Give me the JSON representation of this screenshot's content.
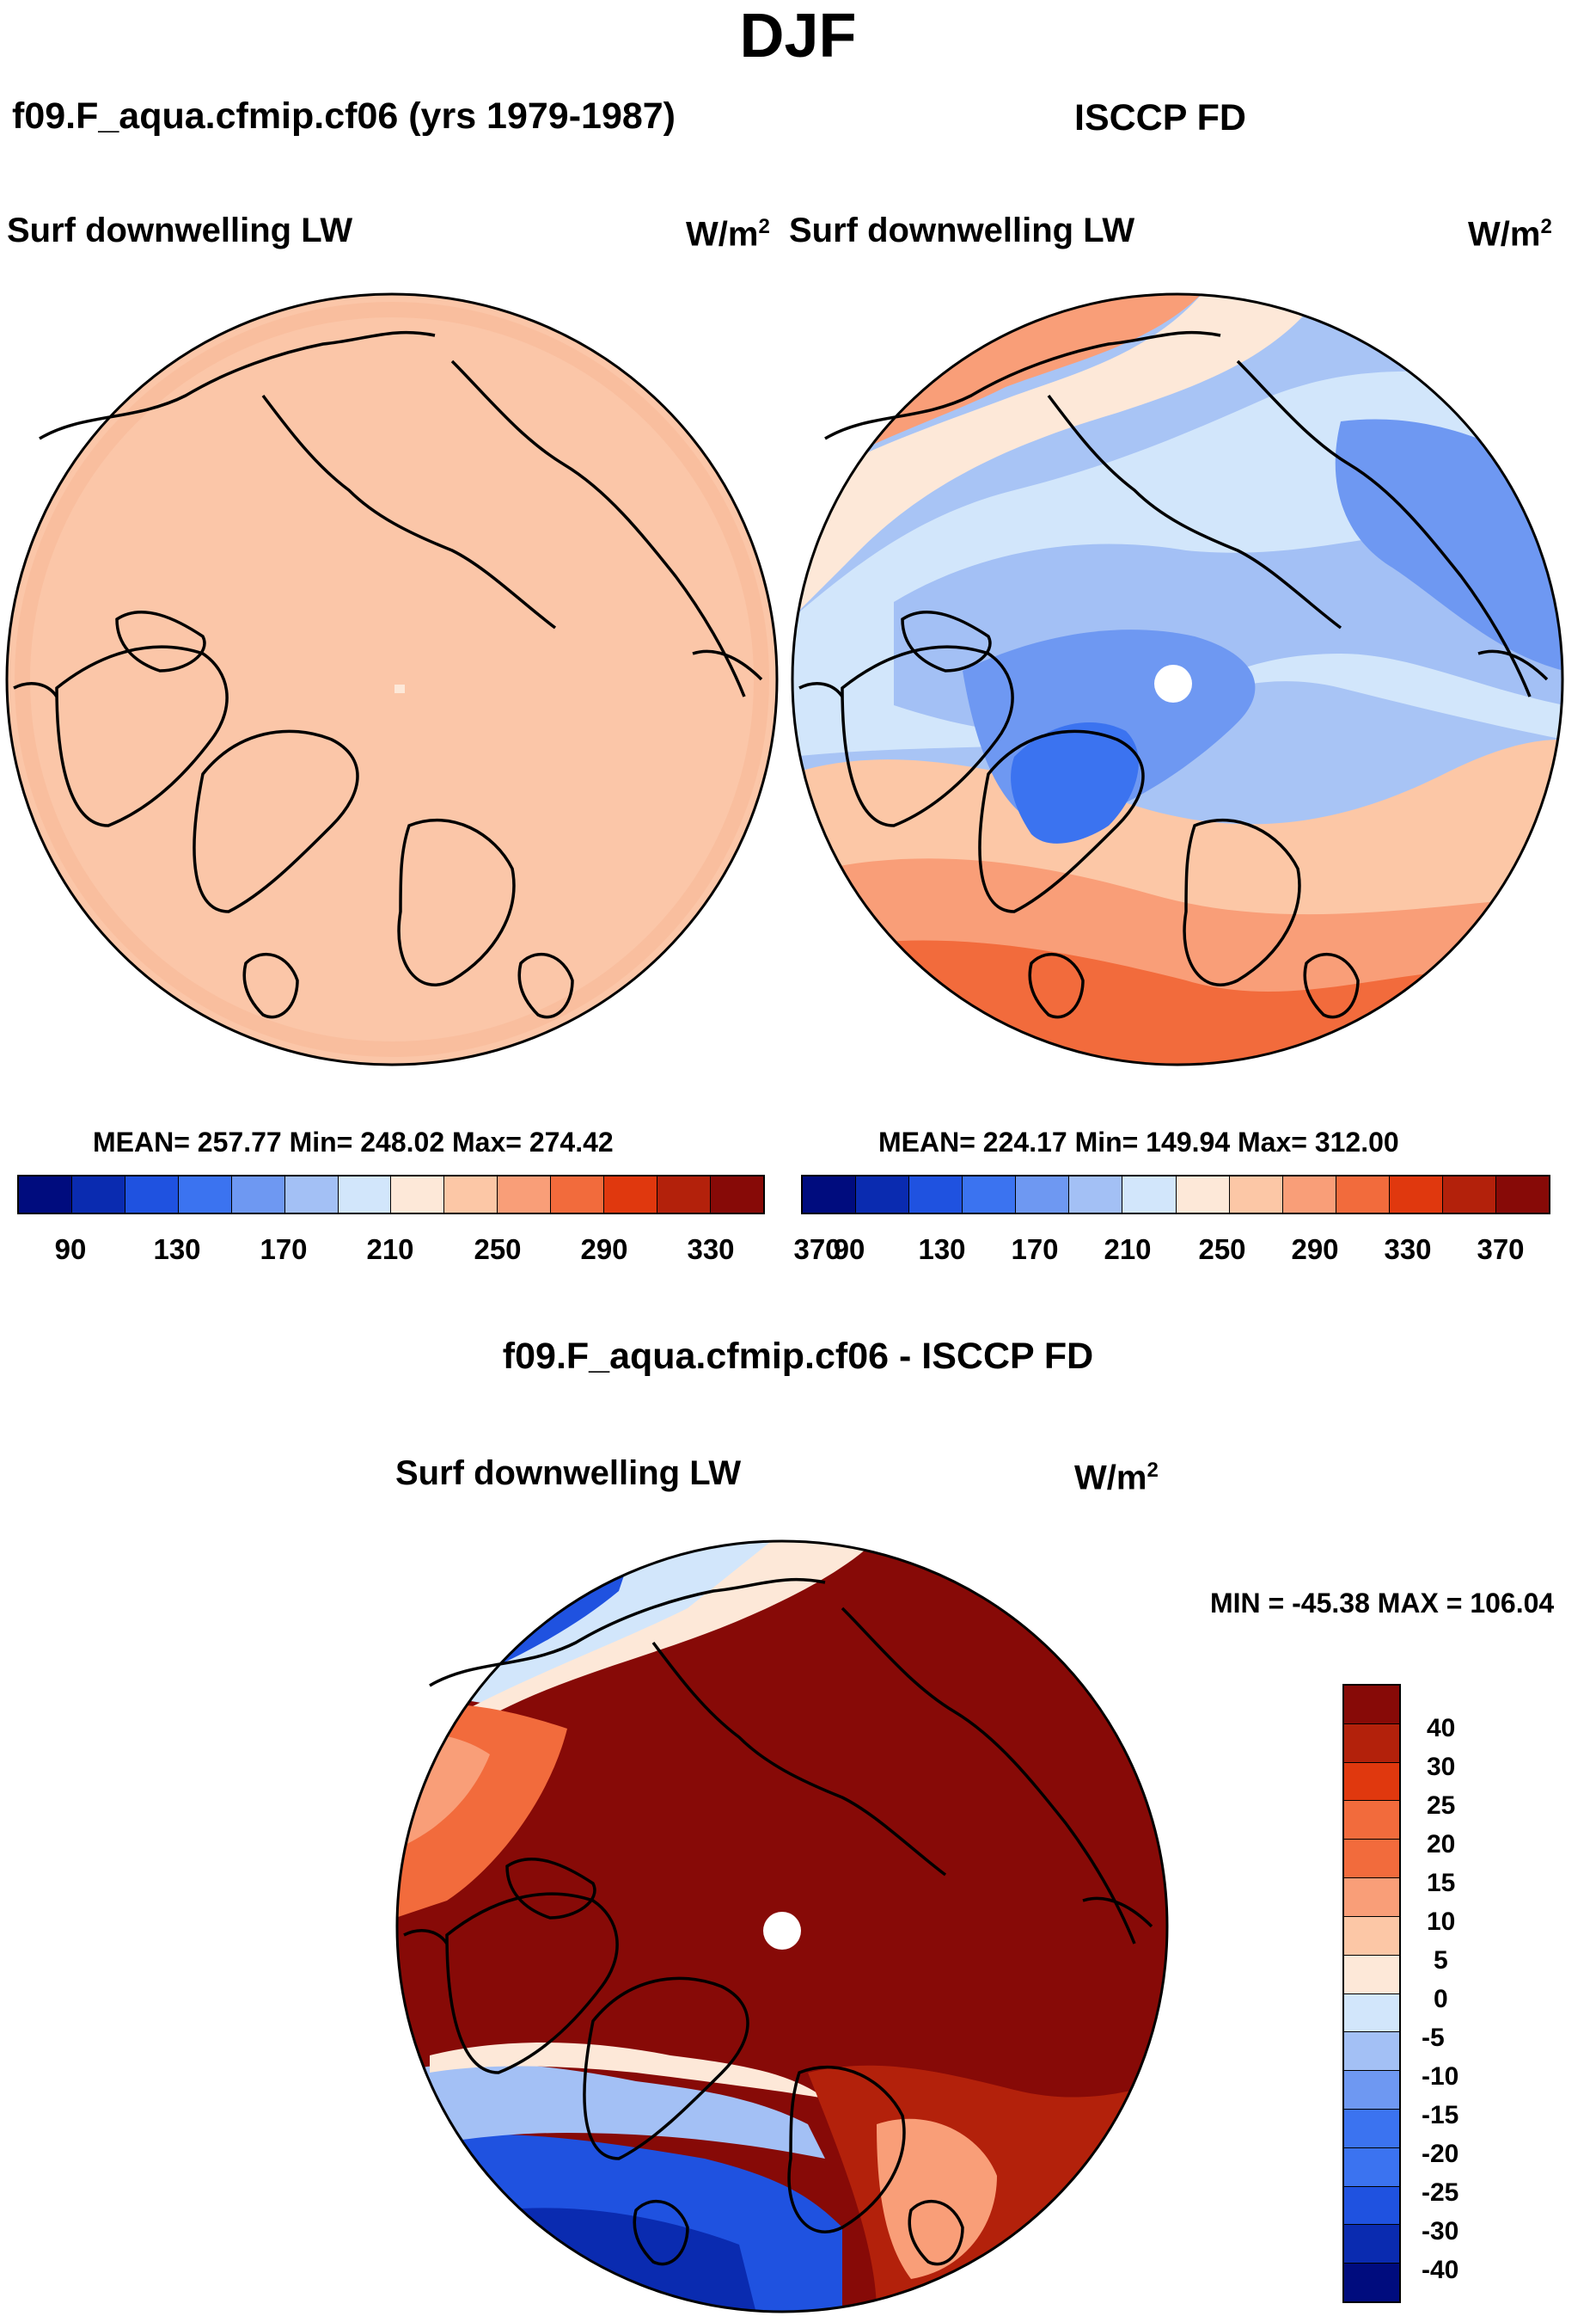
{
  "page_title": "DJF",
  "colors": {
    "abs_levels": [
      "#000c7e",
      "#0a2bb0",
      "#1f52e0",
      "#3b73f0",
      "#6e98f2",
      "#a3c0f5",
      "#d2e6fb",
      "#fde8d8",
      "#fcc7a6",
      "#f99e78",
      "#f26b3c",
      "#e0380e",
      "#b3210b",
      "#870a07"
    ],
    "diff_levels": [
      "#000c7e",
      "#0a2bb0",
      "#1f52e0",
      "#3b73f0",
      "#6e98f2",
      "#a3c0f5",
      "#d2e6fb",
      "#fde8d8",
      "#fcc7a6",
      "#f99e78",
      "#f26b3c",
      "#e0380e",
      "#b3210b",
      "#870a07"
    ]
  },
  "panels": {
    "left": {
      "title": "f09.F_aqua.cfmip.cf06 (yrs 1979-1987)",
      "var_label": "Surf downwelling LW",
      "units": "W/m",
      "units_sup": "2",
      "stats": "MEAN= 257.77  Min= 248.02  Max= 274.42"
    },
    "right": {
      "title": "ISCCP FD",
      "var_label": "Surf downwelling LW",
      "units": "W/m",
      "units_sup": "2",
      "stats": "MEAN= 224.17  Min= 149.94  Max= 312.00"
    },
    "bottom": {
      "title": "f09.F_aqua.cfmip.cf06 - ISCCP FD",
      "var_label": "Surf downwelling LW",
      "units": "W/m",
      "units_sup": "2",
      "stats": "MIN = -45.38 MAX = 106.04"
    }
  },
  "chart_data": [
    {
      "type": "heatmap",
      "title": "f09.F_aqua.cfmip.cf06 (yrs 1979-1987)",
      "projection": "north polar stereographic",
      "variable": "Surf downwelling LW",
      "units": "W/m2",
      "mean": 257.77,
      "min": 248.02,
      "max": 274.42,
      "colorbar_ticks": [
        "90",
        "130",
        "170",
        "210",
        "250",
        "290",
        "330",
        "370"
      ]
    },
    {
      "type": "heatmap",
      "title": "ISCCP FD",
      "projection": "north polar stereographic",
      "variable": "Surf downwelling LW",
      "units": "W/m2",
      "mean": 224.17,
      "min": 149.94,
      "max": 312.0,
      "colorbar_ticks": [
        "90",
        "130",
        "170",
        "210",
        "250",
        "290",
        "330",
        "370"
      ]
    },
    {
      "type": "heatmap",
      "title": "f09.F_aqua.cfmip.cf06 - ISCCP FD",
      "projection": "north polar stereographic",
      "variable": "Surf downwelling LW",
      "units": "W/m2",
      "min": -45.38,
      "max": 106.04,
      "colorbar_ticks": [
        "40",
        "30",
        "25",
        "20",
        "15",
        "10",
        "5",
        "0",
        "-5",
        "-10",
        "-15",
        "-20",
        "-25",
        "-30",
        "-40"
      ]
    }
  ]
}
